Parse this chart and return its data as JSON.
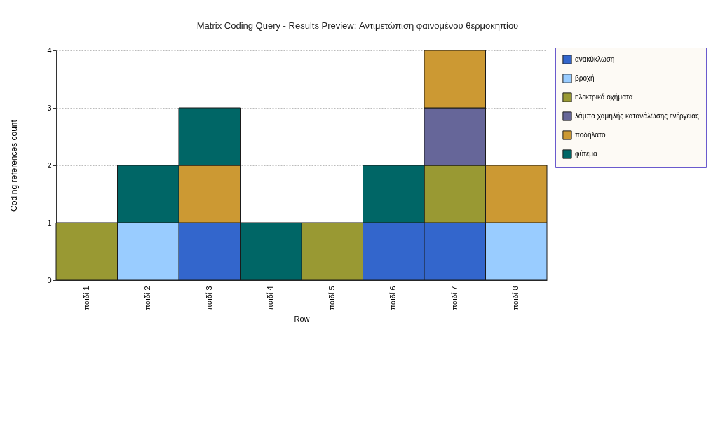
{
  "chart_data": {
    "type": "bar",
    "stacked": true,
    "title": "Matrix Coding Query - Results Preview: Αντιμετώπιση φαινομένου θερμοκηπίου",
    "xlabel": "Row",
    "ylabel": "Coding references count",
    "categories": [
      "παιδί 1",
      "παιδί 2",
      "παιδί 3",
      "παιδί 4",
      "παιδί 5",
      "παιδί 6",
      "παιδί 7",
      "παιδί 8"
    ],
    "series": [
      {
        "name": "ανακύκλωση",
        "color": "#3366cc",
        "values": [
          null,
          null,
          1,
          null,
          null,
          1,
          1,
          null
        ]
      },
      {
        "name": "βροχή",
        "color": "#99ccff",
        "values": [
          null,
          1,
          null,
          null,
          null,
          null,
          null,
          1
        ]
      },
      {
        "name": "ηλεκτρικά οχήματα",
        "color": "#999933",
        "values": [
          1,
          null,
          null,
          null,
          1,
          null,
          1,
          null
        ]
      },
      {
        "name": "λάμπα χαμηλής κατανάλωσης ενέργειας",
        "color": "#666699",
        "values": [
          null,
          null,
          null,
          null,
          null,
          null,
          1,
          null
        ]
      },
      {
        "name": "ποδήλατο",
        "color": "#cc9933",
        "values": [
          null,
          null,
          1,
          null,
          null,
          null,
          1,
          1
        ]
      },
      {
        "name": "φύτεμα",
        "color": "#006666",
        "values": [
          null,
          1,
          1,
          1,
          null,
          1,
          null,
          null
        ]
      }
    ],
    "ylim": [
      0,
      4
    ],
    "yticks": [
      0,
      1,
      2,
      3,
      4
    ],
    "grid": "y",
    "legend": "top right"
  }
}
